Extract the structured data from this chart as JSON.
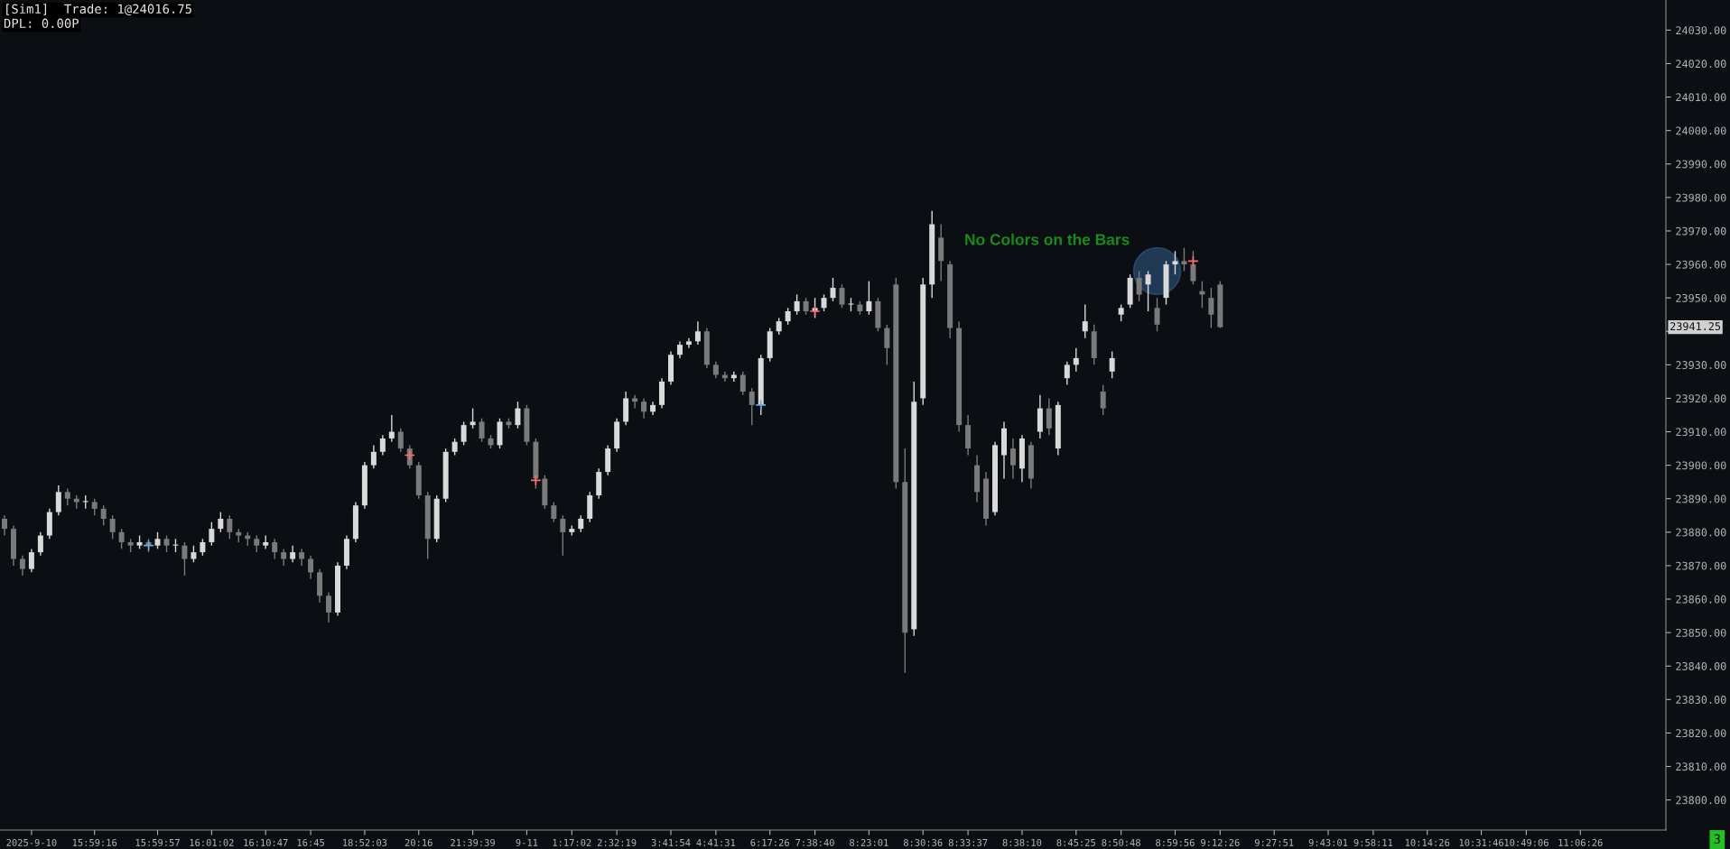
{
  "chart_data": {
    "type": "candlestick",
    "annotations": [
      "[Sim1]  Trade: 1@24016.75",
      "DPL: 0.00P",
      "No Colors on the Bars",
      "3",
      "23941.25"
    ],
    "categories": [
      null,
      null,
      null,
      "2025-9-10",
      null,
      null,
      null,
      null,
      null,
      null,
      "15:59:16",
      null,
      null,
      null,
      null,
      null,
      null,
      "15:59:57",
      null,
      null,
      null,
      null,
      null,
      "16:01:02",
      null,
      null,
      null,
      null,
      null,
      "16:10:47",
      null,
      null,
      null,
      null,
      "16:45",
      null,
      null,
      null,
      null,
      null,
      "18:52:03",
      null,
      null,
      null,
      null,
      null,
      "20:16",
      null,
      null,
      null,
      null,
      null,
      "21:39:39",
      null,
      null,
      null,
      null,
      null,
      "9-11",
      null,
      null,
      null,
      null,
      "1:17:02",
      null,
      null,
      null,
      null,
      "2:32:19",
      null,
      null,
      null,
      null,
      null,
      "3:41:54",
      null,
      null,
      null,
      null,
      "4:41:31",
      null,
      null,
      null,
      null,
      null,
      "6:17:26",
      null,
      null,
      null,
      null,
      "7:38:40",
      null,
      null,
      null,
      null,
      null,
      "8:23:01",
      null,
      null,
      null,
      null,
      null,
      "8:30:36",
      null,
      null,
      null,
      null,
      "8:33:37",
      null,
      null,
      null,
      null,
      null,
      "8:38:10",
      null,
      null,
      null,
      null,
      null,
      "8:45:25",
      null,
      null,
      null,
      null,
      "8:50:48",
      null,
      null,
      null,
      null,
      null,
      "8:59:56",
      null,
      null,
      null,
      null,
      "9:12:26",
      null,
      null,
      null,
      null,
      null,
      "9:27:51",
      null,
      null,
      null,
      null,
      null,
      "9:43:01",
      null,
      null,
      null,
      null,
      "9:58:11",
      null,
      null,
      null,
      null,
      null,
      "10:14:26",
      null,
      null,
      null,
      null,
      null,
      "10:31:46",
      null,
      null,
      null,
      null,
      "10:49:06",
      null,
      null,
      null,
      null,
      null,
      "11:06:26",
      null,
      null,
      null,
      null,
      null,
      null,
      null,
      null,
      null
    ],
    "ohlc": [
      [
        23884,
        23885,
        23879,
        23881
      ],
      [
        23881,
        23882,
        23870,
        23872
      ],
      [
        23872,
        23873,
        23867,
        23869
      ],
      [
        23869,
        23875,
        23868,
        23874
      ],
      [
        23874,
        23880,
        23873,
        23879
      ],
      [
        23879,
        23887,
        23878,
        23886
      ],
      [
        23886,
        23894,
        23885,
        23892
      ],
      [
        23892,
        23893,
        23888,
        23890
      ],
      [
        23890,
        23891,
        23887,
        23889
      ],
      [
        23889,
        23891,
        23887,
        23889
      ],
      [
        23889,
        23890,
        23885,
        23887
      ],
      [
        23887,
        23888,
        23882,
        23884
      ],
      [
        23884,
        23885,
        23878,
        23880
      ],
      [
        23880,
        23881,
        23875,
        23877
      ],
      [
        23877,
        23878,
        23874,
        23876
      ],
      [
        23876,
        23879,
        23875,
        23877
      ],
      [
        23877,
        23878,
        23874,
        23876
      ],
      [
        23876,
        23880,
        23875,
        23878
      ],
      [
        23878,
        23879,
        23874,
        23876
      ],
      [
        23876,
        23878,
        23874,
        23876
      ],
      [
        23876,
        23877,
        23867,
        23872
      ],
      [
        23872,
        23876,
        23871,
        23874
      ],
      [
        23874,
        23878,
        23873,
        23877
      ],
      [
        23877,
        23883,
        23876,
        23881
      ],
      [
        23881,
        23886,
        23880,
        23884
      ],
      [
        23884,
        23885,
        23878,
        23880
      ],
      [
        23880,
        23881,
        23877,
        23879
      ],
      [
        23879,
        23880,
        23876,
        23878
      ],
      [
        23878,
        23879,
        23874,
        23876
      ],
      [
        23876,
        23879,
        23875,
        23877
      ],
      [
        23877,
        23878,
        23872,
        23874
      ],
      [
        23874,
        23875,
        23870,
        23872
      ],
      [
        23872,
        23876,
        23871,
        23874
      ],
      [
        23874,
        23875,
        23870,
        23872
      ],
      [
        23872,
        23873,
        23866,
        23868
      ],
      [
        23868,
        23869,
        23859,
        23861
      ],
      [
        23861,
        23862,
        23853,
        23856
      ],
      [
        23856,
        23871,
        23855,
        23870
      ],
      [
        23870,
        23879,
        23869,
        23878
      ],
      [
        23878,
        23889,
        23877,
        23888
      ],
      [
        23888,
        23901,
        23887,
        23900
      ],
      [
        23900,
        23906,
        23899,
        23904
      ],
      [
        23904,
        23909,
        23903,
        23908
      ],
      [
        23908,
        23915,
        23907,
        23910
      ],
      [
        23910,
        23911,
        23904,
        23905
      ],
      [
        23905,
        23906,
        23899,
        23900
      ],
      [
        23900,
        23901,
        23890,
        23891
      ],
      [
        23891,
        23892,
        23872,
        23878
      ],
      [
        23878,
        23891,
        23877,
        23890
      ],
      [
        23890,
        23905,
        23889,
        23904
      ],
      [
        23904,
        23908,
        23903,
        23907
      ],
      [
        23907,
        23913,
        23906,
        23912
      ],
      [
        23912,
        23917,
        23911,
        23913
      ],
      [
        23913,
        23914,
        23907,
        23908
      ],
      [
        23908,
        23909,
        23905,
        23906
      ],
      [
        23906,
        23914,
        23905,
        23913
      ],
      [
        23913,
        23914,
        23911,
        23912
      ],
      [
        23912,
        23919,
        23911,
        23917
      ],
      [
        23917,
        23918,
        23906,
        23907
      ],
      [
        23907,
        23908,
        23893,
        23896
      ],
      [
        23896,
        23897,
        23887,
        23888
      ],
      [
        23888,
        23889,
        23883,
        23884
      ],
      [
        23884,
        23885,
        23873,
        23880
      ],
      [
        23880,
        23882,
        23879,
        23881
      ],
      [
        23881,
        23885,
        23880,
        23884
      ],
      [
        23884,
        23892,
        23883,
        23891
      ],
      [
        23891,
        23899,
        23890,
        23898
      ],
      [
        23898,
        23906,
        23897,
        23905
      ],
      [
        23905,
        23914,
        23904,
        23913
      ],
      [
        23913,
        23922,
        23912,
        23920
      ],
      [
        23920,
        23921,
        23917,
        23919
      ],
      [
        23919,
        23920,
        23914,
        23916
      ],
      [
        23916,
        23919,
        23915,
        23918
      ],
      [
        23918,
        23926,
        23917,
        23925
      ],
      [
        23925,
        23934,
        23924,
        23933
      ],
      [
        23933,
        23937,
        23932,
        23936
      ],
      [
        23936,
        23938,
        23935,
        23937
      ],
      [
        23937,
        23943,
        23936,
        23940
      ],
      [
        23940,
        23941,
        23929,
        23930
      ],
      [
        23930,
        23931,
        23926,
        23927
      ],
      [
        23927,
        23928,
        23925,
        23926
      ],
      [
        23926,
        23928,
        23925,
        23927
      ],
      [
        23927,
        23928,
        23921,
        23922
      ],
      [
        23922,
        23923,
        23912,
        23918
      ],
      [
        23918,
        23933,
        23915,
        23932
      ],
      [
        23932,
        23941,
        23931,
        23940
      ],
      [
        23940,
        23944,
        23939,
        23943
      ],
      [
        23943,
        23947,
        23942,
        23946
      ],
      [
        23946,
        23951,
        23945,
        23949
      ],
      [
        23949,
        23950,
        23945,
        23946
      ],
      [
        23946,
        23950,
        23944,
        23947
      ],
      [
        23947,
        23951,
        23946,
        23950
      ],
      [
        23950,
        23956,
        23949,
        23953
      ],
      [
        23953,
        23954,
        23947,
        23948
      ],
      [
        23948,
        23950,
        23946,
        23948
      ],
      [
        23948,
        23949,
        23945,
        23946
      ],
      [
        23946,
        23955,
        23945,
        23949
      ],
      [
        23949,
        23950,
        23940,
        23941
      ],
      [
        23941,
        23942,
        23930,
        23935
      ],
      [
        23954,
        23956,
        23893,
        23895
      ],
      [
        23895,
        23905,
        23838,
        23850
      ],
      [
        23851,
        23925,
        23849,
        23919
      ],
      [
        23920,
        23956,
        23918,
        23954
      ],
      [
        23954,
        23976,
        23950,
        23972
      ],
      [
        23968,
        23972,
        23955,
        23961
      ],
      [
        23960,
        23961,
        23938,
        23941
      ],
      [
        23941,
        23943,
        23910,
        23912
      ],
      [
        23912,
        23915,
        23903,
        23905
      ],
      [
        23900,
        23903,
        23889,
        23892
      ],
      [
        23896,
        23898,
        23882,
        23884
      ],
      [
        23886,
        23907,
        23885,
        23906
      ],
      [
        23903,
        23913,
        23896,
        23911
      ],
      [
        23905,
        23908,
        23896,
        23900
      ],
      [
        23899,
        23909,
        23895,
        23908
      ],
      [
        23906,
        23907,
        23893,
        23896
      ],
      [
        23910,
        23921,
        23908,
        23917
      ],
      [
        23917,
        23920,
        23909,
        23911
      ],
      [
        23905,
        23919,
        23903,
        23918
      ],
      [
        23926,
        23931,
        23924,
        23930
      ],
      [
        23930,
        23935,
        23928,
        23932
      ],
      [
        23940,
        23948,
        23938,
        23943
      ],
      [
        23940,
        23942,
        23930,
        23932
      ],
      [
        23922,
        23924,
        23915,
        23917
      ],
      [
        23928,
        23934,
        23926,
        23932
      ],
      [
        23945,
        23948,
        23943,
        23947
      ],
      [
        23948,
        23957,
        23947,
        23956
      ],
      [
        23956,
        23958,
        23949,
        23951
      ],
      [
        23954,
        23958,
        23946,
        23957
      ],
      [
        23947,
        23950,
        23940,
        23942
      ],
      [
        23950,
        23961,
        23948,
        23960
      ],
      [
        23960,
        23964,
        23957,
        23961
      ],
      [
        23961,
        23965,
        23958,
        23960
      ],
      [
        23960,
        23964,
        23954,
        23955
      ],
      [
        23952,
        23955,
        23947,
        23951
      ],
      [
        23950,
        23953,
        23941,
        23945
      ],
      [
        23954,
        23955,
        23941,
        23941.25
      ],
      null,
      null,
      null,
      null,
      null,
      null,
      null,
      null,
      null,
      null,
      null,
      null,
      null,
      null,
      null,
      null,
      null,
      null,
      null,
      null,
      null,
      null,
      null,
      null,
      null,
      null,
      null,
      null,
      null,
      null,
      null,
      null,
      null,
      null,
      null,
      null,
      null,
      null,
      null,
      null,
      null,
      null,
      null,
      null,
      null,
      null,
      null,
      null,
      null
    ],
    "colors": [
      "#7a7a7a",
      "#7a7a7a",
      "#7a7a7a",
      "#d9d9d9",
      "#d9d9d9",
      "#d9d9d9",
      "#d9d9d9",
      "#7a7a7a",
      "#7a7a7a",
      "#d9d9d9",
      "#7a7a7a",
      "#7a7a7a",
      "#7a7a7a",
      "#7a7a7a",
      "#7a7a7a",
      "#d9d9d9",
      "#7a7a7a",
      "#d9d9d9",
      "#7a7a7a",
      "#d9d9d9",
      "#7a7a7a",
      "#d9d9d9",
      "#d9d9d9",
      "#d9d9d9",
      "#d9d9d9",
      "#7a7a7a",
      "#7a7a7a",
      "#7a7a7a",
      "#7a7a7a",
      "#d9d9d9",
      "#7a7a7a",
      "#7a7a7a",
      "#d9d9d9",
      "#7a7a7a",
      "#7a7a7a",
      "#7a7a7a",
      "#7a7a7a",
      "#d9d9d9",
      "#d9d9d9",
      "#d9d9d9",
      "#d9d9d9",
      "#d9d9d9",
      "#d9d9d9",
      "#d9d9d9",
      "#7a7a7a",
      "#7a7a7a",
      "#7a7a7a",
      "#7a7a7a",
      "#d9d9d9",
      "#d9d9d9",
      "#d9d9d9",
      "#d9d9d9",
      "#d9d9d9",
      "#7a7a7a",
      "#7a7a7a",
      "#d9d9d9",
      "#7a7a7a",
      "#d9d9d9",
      "#7a7a7a",
      "#7a7a7a",
      "#7a7a7a",
      "#7a7a7a",
      "#7a7a7a",
      "#d9d9d9",
      "#d9d9d9",
      "#d9d9d9",
      "#d9d9d9",
      "#d9d9d9",
      "#d9d9d9",
      "#d9d9d9",
      "#7a7a7a",
      "#7a7a7a",
      "#d9d9d9",
      "#d9d9d9",
      "#d9d9d9",
      "#d9d9d9",
      "#d9d9d9",
      "#d9d9d9",
      "#7a7a7a",
      "#7a7a7a",
      "#7a7a7a",
      "#d9d9d9",
      "#7a7a7a",
      "#7a7a7a",
      "#d9d9d9",
      "#d9d9d9",
      "#d9d9d9",
      "#d9d9d9",
      "#d9d9d9",
      "#7a7a7a",
      "#d9d9d9",
      "#d9d9d9",
      "#d9d9d9",
      "#7a7a7a",
      "#d9d9d9",
      "#7a7a7a",
      "#d9d9d9",
      "#7a7a7a",
      "#7a7a7a",
      "#7a7a7a",
      "#7a7a7a",
      "#d9d9d9",
      "#d9d9d9",
      "#d9d9d9",
      "#7a7a7a",
      "#7a7a7a",
      "#7a7a7a",
      "#7a7a7a",
      "#7a7a7a",
      "#7a7a7a",
      "#d9d9d9",
      "#d9d9d9",
      "#7a7a7a",
      "#d9d9d9",
      "#7a7a7a",
      "#d9d9d9",
      "#7a7a7a",
      "#d9d9d9",
      "#d9d9d9",
      "#d9d9d9",
      "#d9d9d9",
      "#7a7a7a",
      "#7a7a7a",
      "#d9d9d9",
      "#d9d9d9",
      "#d9d9d9",
      "#7a7a7a",
      "#d9d9d9",
      "#7a7a7a",
      "#d9d9d9",
      "#d9d9d9",
      "#7a7a7a",
      "#7a7a7a",
      "#7a7a7a",
      "#7a7a7a",
      "#7a7a7a",
      null,
      null,
      null,
      null,
      null,
      null,
      null,
      null,
      null,
      null,
      null,
      null,
      null,
      null,
      null,
      null,
      null,
      null,
      null,
      null,
      null,
      null,
      null,
      null,
      null,
      null,
      null,
      null,
      null,
      null,
      null,
      null,
      null,
      null,
      null,
      null,
      null,
      null,
      null,
      null,
      null,
      null,
      null,
      null,
      null,
      null,
      null,
      null,
      null
    ],
    "series": [
      {
        "type": "scatter",
        "marker": "cross",
        "color": "#ff6b6b",
        "values": [
          null,
          null,
          null,
          null,
          null,
          null,
          null,
          null,
          null,
          null,
          null,
          null,
          null,
          null,
          null,
          null,
          null,
          null,
          null,
          null,
          null,
          null,
          null,
          null,
          null,
          null,
          null,
          null,
          null,
          null,
          null,
          null,
          null,
          null,
          null,
          null,
          null,
          null,
          null,
          null,
          null,
          null,
          null,
          null,
          null,
          23903,
          null,
          null,
          null,
          null,
          null,
          null,
          null,
          null,
          null,
          null,
          null,
          null,
          null,
          23895.5,
          null,
          null,
          null,
          null,
          null,
          null,
          null,
          null,
          null,
          null,
          null,
          null,
          null,
          null,
          null,
          null,
          null,
          null,
          null,
          null,
          null,
          null,
          null,
          null,
          null,
          null,
          null,
          null,
          null,
          null,
          23946,
          null,
          null,
          null,
          null,
          null,
          null,
          null,
          null,
          null,
          null,
          null,
          null,
          null,
          null,
          null,
          null,
          null,
          null,
          null,
          null,
          null,
          null,
          null,
          null,
          null,
          null,
          null,
          null,
          null,
          null,
          null,
          null,
          null,
          null,
          null,
          null,
          null,
          null,
          null,
          null,
          null,
          23961,
          null,
          null,
          null,
          null,
          null,
          null,
          null,
          null,
          null,
          null,
          null,
          null,
          null,
          null,
          null,
          null,
          null,
          null,
          null,
          null,
          null,
          null,
          null,
          null,
          null,
          null,
          null,
          null,
          null,
          null,
          null,
          null,
          null,
          null,
          null,
          null,
          null,
          null,
          null,
          null,
          null,
          null,
          null,
          null,
          null,
          null,
          null,
          null,
          null,
          null,
          null,
          null
        ]
      },
      {
        "type": "scatter",
        "marker": "cross",
        "color": "#6fa8dc",
        "values": [
          null,
          null,
          null,
          null,
          null,
          null,
          null,
          null,
          null,
          null,
          null,
          null,
          null,
          null,
          null,
          null,
          23876,
          null,
          null,
          null,
          null,
          null,
          null,
          null,
          null,
          null,
          null,
          null,
          null,
          null,
          null,
          null,
          null,
          null,
          null,
          null,
          null,
          null,
          null,
          null,
          null,
          null,
          null,
          null,
          null,
          null,
          null,
          null,
          null,
          null,
          null,
          null,
          null,
          null,
          null,
          null,
          null,
          null,
          null,
          null,
          null,
          null,
          null,
          null,
          null,
          null,
          null,
          null,
          null,
          null,
          null,
          null,
          null,
          null,
          null,
          null,
          null,
          null,
          null,
          null,
          null,
          null,
          null,
          null,
          23918,
          null,
          null,
          null,
          null,
          null,
          null,
          null,
          null,
          null,
          null,
          null,
          null,
          null,
          null,
          null,
          null,
          null,
          null,
          null,
          null,
          null,
          null,
          null,
          null,
          null,
          null,
          null,
          null,
          null,
          null,
          null,
          null,
          null,
          null,
          null,
          null,
          null,
          null,
          null,
          null,
          null,
          null,
          null,
          null,
          null,
          null,
          null,
          null,
          null,
          null,
          null,
          null,
          null,
          null,
          null,
          null,
          null,
          null,
          null,
          null,
          null,
          null,
          null,
          null,
          null,
          null,
          null,
          null,
          null,
          null,
          null,
          null,
          null,
          null,
          null,
          null,
          null,
          null,
          null,
          null,
          null,
          null,
          null,
          null,
          null,
          null,
          null,
          null,
          null,
          null,
          null,
          null,
          null,
          null,
          null,
          null,
          null,
          null,
          null,
          null
        ]
      },
      {
        "type": "scatter",
        "marker": "circle",
        "color": "#3a6ea5",
        "values": [
          null,
          null,
          null,
          null,
          null,
          null,
          null,
          null,
          null,
          null,
          null,
          null,
          null,
          null,
          null,
          null,
          null,
          null,
          null,
          null,
          null,
          null,
          null,
          null,
          null,
          null,
          null,
          null,
          null,
          null,
          null,
          null,
          null,
          null,
          null,
          null,
          null,
          null,
          null,
          null,
          null,
          null,
          null,
          null,
          null,
          null,
          null,
          null,
          null,
          null,
          null,
          null,
          null,
          null,
          null,
          null,
          null,
          null,
          null,
          null,
          null,
          null,
          null,
          null,
          null,
          null,
          null,
          null,
          null,
          null,
          null,
          null,
          null,
          null,
          null,
          null,
          null,
          null,
          null,
          null,
          null,
          null,
          null,
          null,
          null,
          null,
          null,
          null,
          null,
          null,
          null,
          null,
          null,
          null,
          null,
          null,
          null,
          null,
          null,
          null,
          null,
          null,
          null,
          null,
          null,
          null,
          null,
          null,
          null,
          null,
          null,
          null,
          null,
          null,
          null,
          null,
          null,
          null,
          null,
          null,
          null,
          null,
          null,
          null,
          null,
          null,
          null,
          null,
          23958,
          null,
          null,
          null,
          null,
          null,
          null,
          null,
          null,
          null,
          null,
          null,
          null,
          null,
          null,
          null,
          null,
          null,
          null,
          null,
          null,
          null,
          null,
          null,
          null,
          null,
          null,
          null,
          null,
          null,
          null,
          null,
          null,
          null,
          null,
          null,
          null,
          null,
          null,
          null,
          null,
          null,
          null,
          null,
          null,
          null,
          null,
          null,
          null,
          null,
          null,
          null,
          null,
          null,
          null,
          null,
          null
        ]
      }
    ],
    "ylim": [
      23791,
      24039
    ],
    "yticks": [
      {
        "value": 23800,
        "label": "23800.00"
      },
      {
        "value": 23810,
        "label": "23810.00"
      },
      {
        "value": 23820,
        "label": "23820.00"
      },
      {
        "value": 23830,
        "label": "23830.00"
      },
      {
        "value": 23840,
        "label": "23840.00"
      },
      {
        "value": 23850,
        "label": "23850.00"
      },
      {
        "value": 23860,
        "label": "23860.00"
      },
      {
        "value": 23870,
        "label": "23870.00"
      },
      {
        "value": 23880,
        "label": "23880.00"
      },
      {
        "value": 23890,
        "label": "23890.00"
      },
      {
        "value": 23900,
        "label": "23900.00"
      },
      {
        "value": 23910,
        "label": "23910.00"
      },
      {
        "value": 23920,
        "label": "23920.00"
      },
      {
        "value": 23930,
        "label": "23930.00"
      },
      {
        "value": 23940,
        "label": null
      },
      {
        "value": 23950,
        "label": "23950.00"
      },
      {
        "value": 23960,
        "label": "23960.00"
      },
      {
        "value": 23970,
        "label": "23970.00"
      },
      {
        "value": 23980,
        "label": "23980.00"
      },
      {
        "value": 23990,
        "label": "23990.00"
      },
      {
        "value": 24000,
        "label": "24000.00"
      },
      {
        "value": 24010,
        "label": "24010.00"
      },
      {
        "value": 24020,
        "label": "24020.00"
      },
      {
        "value": 24030,
        "label": "24030.00"
      }
    ],
    "grid": false,
    "legend": false
  }
}
